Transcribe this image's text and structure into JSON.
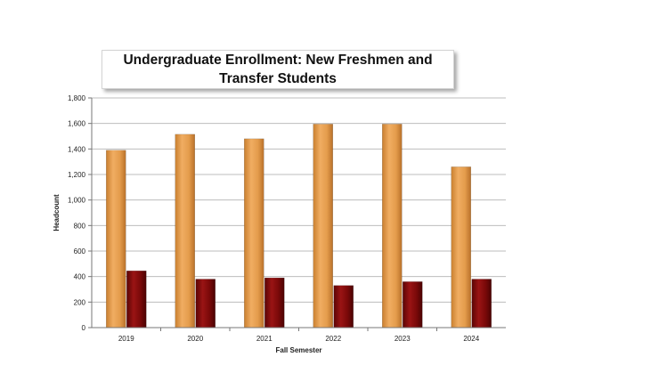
{
  "chart_data": {
    "type": "bar",
    "title": "Undergraduate Enrollment: New Freshmen and Transfer Students",
    "xlabel": "Fall Semester",
    "ylabel": "Headcount",
    "categories": [
      "2019",
      "2020",
      "2021",
      "2022",
      "2023",
      "2024"
    ],
    "series": [
      {
        "values": [
          1390,
          1515,
          1480,
          1595,
          1595,
          1260
        ],
        "color": "#e6a050"
      },
      {
        "values": [
          445,
          380,
          390,
          330,
          360,
          380
        ],
        "color": "#7d0a0a"
      }
    ],
    "ylim": [
      0,
      1800
    ],
    "yticks": [
      "0",
      "200",
      "400",
      "600",
      "800",
      "1,000",
      "1,200",
      "1,400",
      "1,600",
      "1,800"
    ],
    "grid": true,
    "legend": "none"
  }
}
